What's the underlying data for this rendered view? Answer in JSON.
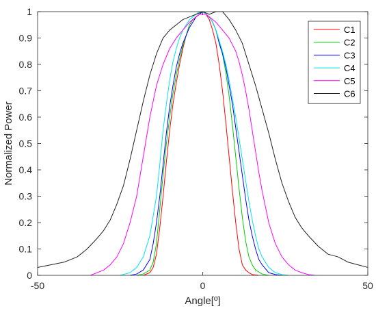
{
  "chart_data": {
    "type": "line",
    "title": "",
    "xlabel": "Angle[º]",
    "ylabel": "Normalized Power",
    "xlim": [
      -50,
      50
    ],
    "ylim": [
      0,
      1
    ],
    "xticks": [
      -50,
      0,
      50
    ],
    "xtick_labels": [
      "-50",
      "0",
      "50"
    ],
    "yticks": [
      0,
      0.1,
      0.2,
      0.3,
      0.4,
      0.5,
      0.6,
      0.7,
      0.8,
      0.9,
      1
    ],
    "ytick_labels": [
      "0",
      "0.1",
      "0.2",
      "0.3",
      "0.4",
      "0.5",
      "0.6",
      "0.7",
      "0.8",
      "0.9",
      "1"
    ],
    "grid": false,
    "legend_position": "top-right",
    "series": [
      {
        "name": "C1",
        "color": "#ff0000",
        "x": [
          -18,
          -16,
          -15,
          -14,
          -13,
          -12,
          -11,
          -10,
          -9,
          -8,
          -7,
          -6,
          -5,
          -4,
          -3,
          -2,
          -1,
          0,
          1,
          2,
          3,
          4,
          5,
          6,
          7,
          8,
          9,
          10,
          11,
          12,
          13,
          14,
          15,
          17
        ],
        "y": [
          0,
          0.01,
          0.03,
          0.08,
          0.18,
          0.3,
          0.43,
          0.55,
          0.65,
          0.73,
          0.8,
          0.86,
          0.91,
          0.95,
          0.97,
          0.98,
          0.99,
          1,
          0.99,
          0.97,
          0.93,
          0.88,
          0.8,
          0.7,
          0.58,
          0.45,
          0.32,
          0.2,
          0.1,
          0.04,
          0.02,
          0.01,
          0.003,
          0
        ]
      },
      {
        "name": "C2",
        "color": "#00cc00",
        "x": [
          -20,
          -18,
          -16,
          -15,
          -14,
          -13,
          -12,
          -11,
          -10,
          -9,
          -8,
          -7,
          -6,
          -5,
          -4,
          -3,
          -2,
          -1,
          0,
          1,
          2,
          3,
          4,
          5,
          6,
          7,
          8,
          9,
          10,
          11,
          12,
          13,
          14,
          15,
          16,
          18,
          20
        ],
        "y": [
          0,
          0.005,
          0.02,
          0.05,
          0.12,
          0.25,
          0.38,
          0.5,
          0.6,
          0.69,
          0.76,
          0.82,
          0.87,
          0.91,
          0.95,
          0.97,
          0.98,
          0.99,
          1,
          0.99,
          0.98,
          0.96,
          0.93,
          0.89,
          0.84,
          0.77,
          0.68,
          0.57,
          0.45,
          0.33,
          0.22,
          0.13,
          0.07,
          0.04,
          0.02,
          0.005,
          0
        ]
      },
      {
        "name": "C3",
        "color": "#0000ff",
        "x": [
          -22,
          -20,
          -18,
          -16,
          -15,
          -14,
          -13,
          -12,
          -11,
          -10,
          -9,
          -8,
          -7,
          -6,
          -5,
          -4,
          -3,
          -2,
          -1,
          0,
          1,
          2,
          3,
          4,
          5,
          6,
          7,
          8,
          9,
          10,
          11,
          12,
          13,
          14,
          15,
          16,
          17,
          18,
          20,
          22,
          24
        ],
        "y": [
          0,
          0.005,
          0.02,
          0.06,
          0.12,
          0.2,
          0.3,
          0.42,
          0.54,
          0.64,
          0.72,
          0.79,
          0.84,
          0.88,
          0.91,
          0.94,
          0.96,
          0.98,
          0.99,
          1,
          0.99,
          0.98,
          0.96,
          0.93,
          0.88,
          0.84,
          0.79,
          0.72,
          0.65,
          0.56,
          0.47,
          0.38,
          0.29,
          0.21,
          0.15,
          0.1,
          0.06,
          0.04,
          0.01,
          0.003,
          0
        ]
      },
      {
        "name": "C4",
        "color": "#00e5e5",
        "x": [
          -25,
          -22,
          -20,
          -18,
          -16,
          -14,
          -13,
          -12,
          -11,
          -10,
          -9,
          -8,
          -7,
          -6,
          -5,
          -4,
          -3,
          -2,
          -1,
          0,
          1,
          2,
          3,
          4,
          5,
          6,
          7,
          8,
          9,
          10,
          11,
          12,
          13,
          14,
          15,
          16,
          17,
          18,
          19,
          20,
          22,
          24,
          26
        ],
        "y": [
          0,
          0.01,
          0.03,
          0.07,
          0.15,
          0.3,
          0.42,
          0.55,
          0.65,
          0.74,
          0.81,
          0.86,
          0.9,
          0.93,
          0.95,
          0.97,
          0.98,
          0.99,
          1,
          1,
          0.99,
          0.98,
          0.96,
          0.93,
          0.89,
          0.85,
          0.8,
          0.74,
          0.67,
          0.6,
          0.52,
          0.44,
          0.36,
          0.28,
          0.21,
          0.15,
          0.1,
          0.07,
          0.05,
          0.03,
          0.01,
          0.003,
          0
        ]
      },
      {
        "name": "C5",
        "color": "#ff00ff",
        "x": [
          -34,
          -30,
          -28,
          -26,
          -24,
          -22,
          -20,
          -18,
          -16,
          -14,
          -12,
          -10,
          -8,
          -6,
          -4,
          -2,
          -1,
          0,
          1,
          2,
          4,
          6,
          8,
          10,
          11,
          12,
          13,
          14,
          15,
          16,
          17,
          18,
          19,
          20,
          22,
          24,
          26,
          28,
          30,
          32,
          34
        ],
        "y": [
          0,
          0.02,
          0.04,
          0.07,
          0.12,
          0.2,
          0.3,
          0.45,
          0.6,
          0.72,
          0.8,
          0.86,
          0.9,
          0.93,
          0.96,
          0.98,
          0.99,
          0.99,
          0.99,
          0.98,
          0.96,
          0.93,
          0.9,
          0.85,
          0.81,
          0.76,
          0.7,
          0.63,
          0.55,
          0.47,
          0.39,
          0.32,
          0.26,
          0.2,
          0.12,
          0.07,
          0.04,
          0.02,
          0.01,
          0.003,
          0
        ]
      },
      {
        "name": "C6",
        "color": "#202020",
        "x": [
          -50,
          -46,
          -42,
          -38,
          -35,
          -32,
          -30,
          -28,
          -26,
          -24,
          -22,
          -20,
          -18,
          -16,
          -14,
          -12,
          -10,
          -8,
          -6,
          -4,
          -2,
          0,
          2,
          4,
          6,
          8,
          10,
          12,
          14,
          16,
          18,
          20,
          22,
          24,
          26,
          28,
          30,
          32,
          35,
          38,
          41,
          44,
          47,
          50
        ],
        "y": [
          0.03,
          0.04,
          0.05,
          0.07,
          0.1,
          0.14,
          0.17,
          0.21,
          0.27,
          0.34,
          0.44,
          0.55,
          0.66,
          0.76,
          0.84,
          0.9,
          0.93,
          0.95,
          0.97,
          0.98,
          0.99,
          1,
          0.99,
          1,
          1,
          0.97,
          0.93,
          0.88,
          0.8,
          0.72,
          0.63,
          0.54,
          0.44,
          0.35,
          0.28,
          0.22,
          0.18,
          0.15,
          0.11,
          0.08,
          0.07,
          0.05,
          0.04,
          0.03
        ]
      }
    ]
  }
}
